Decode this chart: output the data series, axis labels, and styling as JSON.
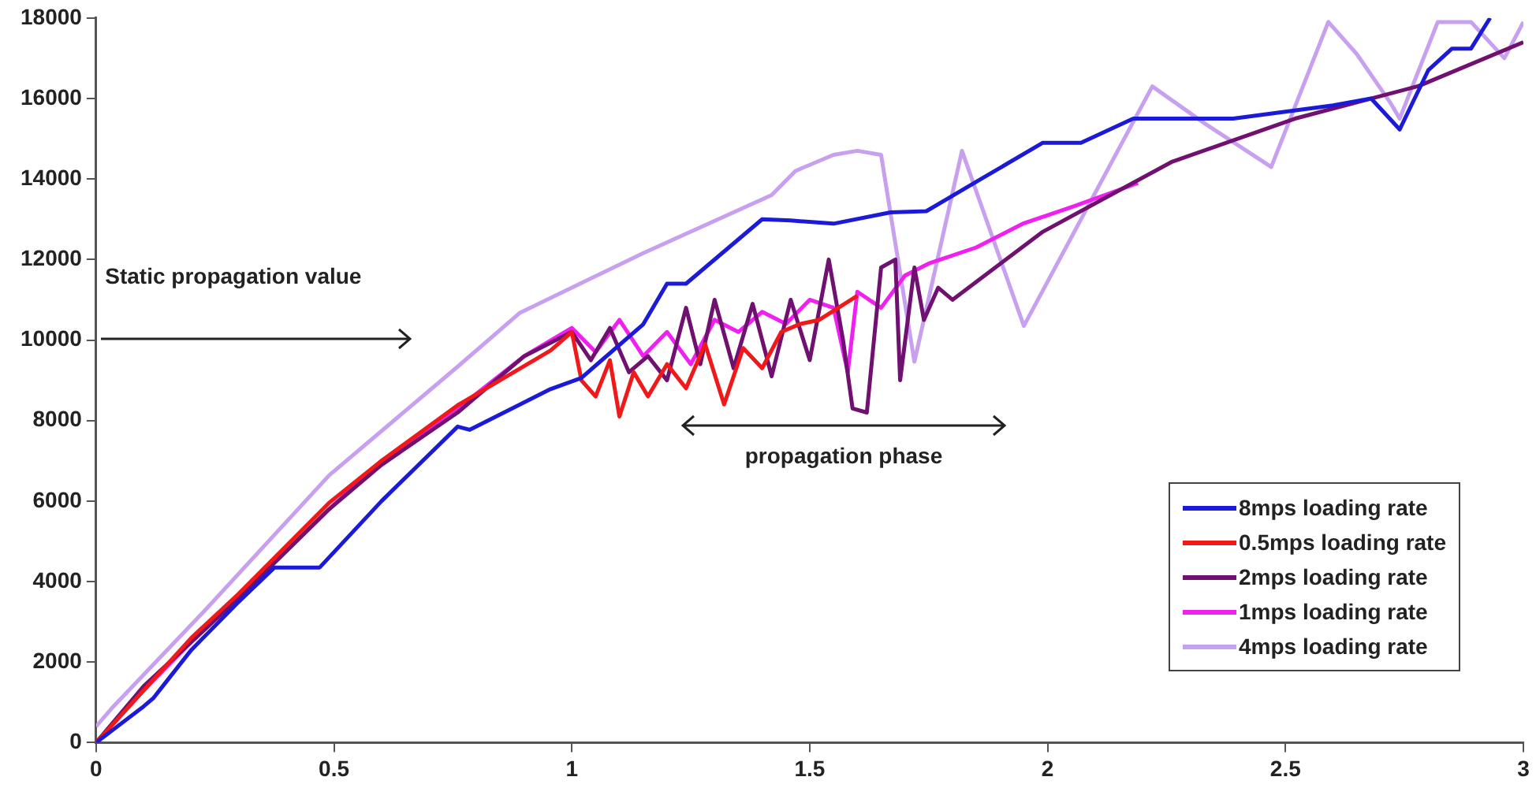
{
  "chart_data": {
    "type": "line",
    "xlim": [
      0,
      3
    ],
    "xticks": [
      0,
      0.5,
      1,
      1.5,
      2,
      2.5,
      3
    ],
    "ylim": [
      0,
      18000
    ],
    "yticks": [
      0,
      2000,
      4000,
      6000,
      8000,
      10000,
      12000,
      14000,
      16000,
      18000
    ],
    "grid": false,
    "legend": "bottom right",
    "marker": "none",
    "line_style": "solid",
    "annotations": [
      "Static propagation value",
      "propagation phase"
    ],
    "series": [
      {
        "name": "8mps loading rate",
        "color": "#1a1ad8",
        "x": [
          0,
          0.1,
          0.12,
          0.14,
          0.2,
          0.3,
          0.375,
          0.47,
          0.6,
          0.76,
          0.785,
          0.955,
          1.02,
          1.15,
          1.2,
          1.24,
          1.4,
          1.46,
          1.55,
          1.67,
          1.745,
          1.86,
          1.99,
          2.07,
          2.18,
          2.39,
          2.6,
          2.68,
          2.74,
          2.8,
          2.85,
          2.89,
          2.93
        ],
        "values": [
          0,
          900,
          1100,
          1400,
          2300,
          3500,
          4350,
          4350,
          6000,
          7850,
          7770,
          8780,
          9060,
          10390,
          11400,
          11400,
          13000,
          12970,
          12890,
          13170,
          13200,
          14000,
          14900,
          14900,
          15500,
          15500,
          15830,
          16000,
          15230,
          16700,
          17240,
          17240,
          18000
        ]
      },
      {
        "name": "0.5mps loading rate",
        "color": "#f01818",
        "x": [
          0,
          0.1,
          0.2,
          0.3,
          0.49,
          0.6,
          0.76,
          0.955,
          1.0,
          1.02,
          1.05,
          1.08,
          1.1,
          1.13,
          1.16,
          1.2,
          1.24,
          1.28,
          1.32,
          1.36,
          1.4,
          1.44,
          1.48,
          1.52,
          1.56,
          1.6
        ],
        "values": [
          0,
          1300,
          2600,
          3700,
          5960,
          7000,
          8380,
          9740,
          10200,
          9000,
          8600,
          9500,
          8100,
          9200,
          8600,
          9400,
          8800,
          9900,
          8400,
          9800,
          9300,
          10200,
          10400,
          10500,
          10800,
          11100
        ]
      },
      {
        "name": "2mps loading rate",
        "color": "#701070",
        "x": [
          0,
          0.1,
          0.2,
          0.3,
          0.49,
          0.6,
          0.76,
          0.9,
          1.0,
          1.04,
          1.08,
          1.12,
          1.16,
          1.2,
          1.24,
          1.27,
          1.3,
          1.34,
          1.38,
          1.42,
          1.46,
          1.5,
          1.54,
          1.57,
          1.59,
          1.62,
          1.65,
          1.68,
          1.69,
          1.72,
          1.74,
          1.77,
          1.8,
          1.99,
          2.26,
          2.52,
          2.78,
          3.0
        ],
        "values": [
          0,
          1400,
          2500,
          3600,
          5800,
          6900,
          8200,
          9600,
          10200,
          9500,
          10300,
          9200,
          9600,
          9000,
          10800,
          9400,
          11000,
          9300,
          10900,
          9100,
          11000,
          9500,
          12000,
          10000,
          8300,
          8200,
          11800,
          12000,
          9000,
          11800,
          10500,
          11300,
          11000,
          12690,
          14420,
          15500,
          16310,
          17400
        ]
      },
      {
        "name": "1mps loading rate",
        "color": "#f020f0",
        "x": [
          0,
          0.1,
          0.2,
          0.3,
          0.49,
          0.6,
          0.76,
          0.9,
          1.0,
          1.05,
          1.1,
          1.15,
          1.2,
          1.25,
          1.3,
          1.35,
          1.4,
          1.45,
          1.5,
          1.55,
          1.58,
          1.6,
          1.65,
          1.7,
          1.75,
          1.85,
          1.95,
          2.05,
          2.19
        ],
        "values": [
          0,
          1300,
          2500,
          3600,
          5800,
          7000,
          8300,
          9600,
          10300,
          9700,
          10500,
          9600,
          10200,
          9400,
          10500,
          10200,
          10700,
          10400,
          11000,
          10800,
          9200,
          11200,
          10800,
          11600,
          11900,
          12300,
          12900,
          13300,
          13900
        ]
      },
      {
        "name": "4mps loading rate",
        "color": "#c8a0f0",
        "x": [
          0,
          0.035,
          0.23,
          0.49,
          0.76,
          0.89,
          1.15,
          1.42,
          1.47,
          1.55,
          1.6,
          1.65,
          1.72,
          1.82,
          1.95,
          2.22,
          2.33,
          2.47,
          2.59,
          2.65,
          2.72,
          2.74,
          2.82,
          2.89,
          2.96,
          3.0
        ],
        "values": [
          400,
          880,
          3300,
          6640,
          9340,
          10670,
          12160,
          13600,
          14200,
          14600,
          14700,
          14600,
          9460,
          14700,
          10350,
          16300,
          15380,
          14300,
          17900,
          17100,
          15900,
          15500,
          17900,
          17900,
          17000,
          17900
        ]
      }
    ]
  }
}
